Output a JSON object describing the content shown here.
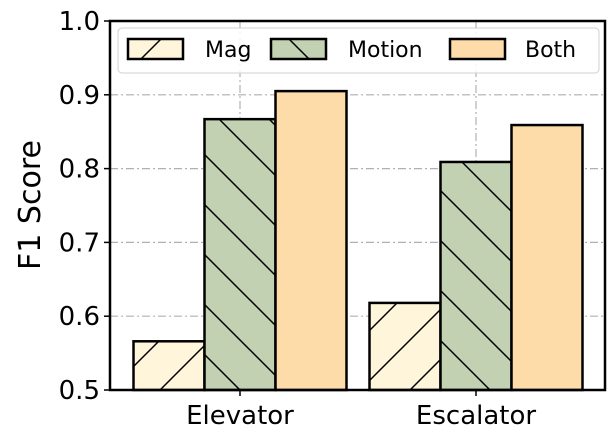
{
  "chart_data": {
    "type": "bar",
    "title": "",
    "xlabel": "",
    "ylabel": "F1 Score",
    "ylim": [
      0.5,
      1.0
    ],
    "yticks": [
      "0.5",
      "0.6",
      "0.7",
      "0.8",
      "0.9",
      "1.0"
    ],
    "categories": [
      "Elevator",
      "Escalator"
    ],
    "series": [
      {
        "name": "Mag",
        "values": [
          0.566,
          0.618
        ],
        "color": "#FFF5DA",
        "hatch": "/"
      },
      {
        "name": "Motion",
        "values": [
          0.867,
          0.809
        ],
        "color": "#C1D1B1",
        "hatch": "\\"
      },
      {
        "name": "Both",
        "values": [
          0.905,
          0.859
        ],
        "color": "#FDDCA9",
        "hatch": ""
      }
    ],
    "grid": true,
    "legend_position": "upper center"
  }
}
